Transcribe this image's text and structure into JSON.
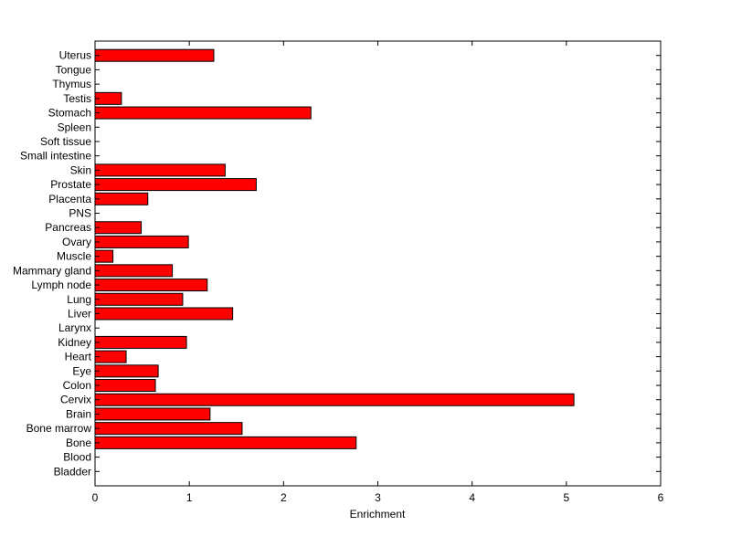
{
  "chart_data": {
    "type": "bar",
    "orientation": "horizontal",
    "title": "",
    "xlabel": "Enrichment",
    "ylabel": "",
    "xlim": [
      0,
      6
    ],
    "xticks": [
      0,
      1,
      2,
      3,
      4,
      5,
      6
    ],
    "grid": false,
    "legend": "none",
    "bar_color": "#ff0000",
    "bar_edge_color": "#000000",
    "categories": [
      "Bladder",
      "Blood",
      "Bone",
      "Bone marrow",
      "Brain",
      "Cervix",
      "Colon",
      "Eye",
      "Heart",
      "Kidney",
      "Larynx",
      "Liver",
      "Lung",
      "Lymph node",
      "Mammary gland",
      "Muscle",
      "Ovary",
      "Pancreas",
      "PNS",
      "Placenta",
      "Prostate",
      "Skin",
      "Small intestine",
      "Soft tissue",
      "Spleen",
      "Stomach",
      "Testis",
      "Thymus",
      "Tongue",
      "Uterus"
    ],
    "values": [
      0,
      0,
      2.77,
      1.56,
      1.22,
      5.08,
      0.64,
      0.67,
      0.33,
      0.97,
      0,
      1.46,
      0.93,
      1.19,
      0.82,
      0.19,
      0.99,
      0.49,
      0,
      0.56,
      1.71,
      1.38,
      0,
      0,
      0,
      2.29,
      0.28,
      0,
      0,
      1.26
    ]
  }
}
